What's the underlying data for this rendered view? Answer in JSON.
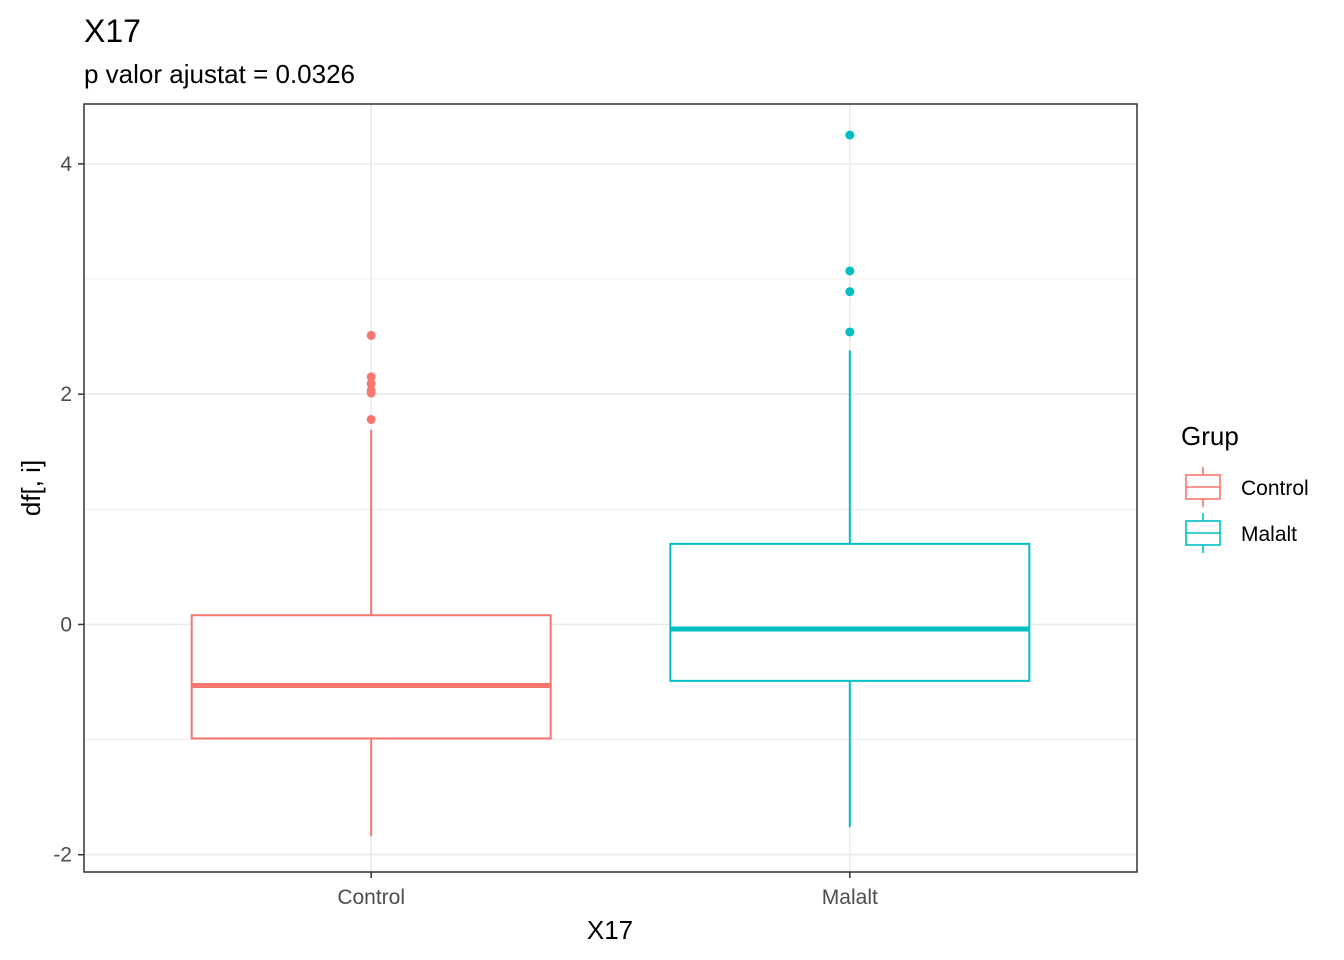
{
  "chart_data": {
    "type": "boxplot",
    "title": "X17",
    "subtitle": "p valor ajustat = 0.0326",
    "xlabel": "X17",
    "ylabel": "df[, i]",
    "categories": [
      "Control",
      "Malalt"
    ],
    "ylim": [
      -2.15,
      4.52
    ],
    "yticks": [
      -2,
      0,
      2,
      4
    ],
    "ytick_labels": [
      "-2",
      "0",
      "2",
      "4"
    ],
    "grid": true,
    "legend": {
      "title": "Grup",
      "position": "right",
      "entries": [
        "Control",
        "Malalt"
      ]
    },
    "boxes": [
      {
        "group": "Control",
        "color": "#F8766D",
        "whisker_low": -1.84,
        "q1": -0.99,
        "median": -0.53,
        "q3": 0.08,
        "whisker_high": 1.69,
        "outliers": [
          2.51,
          2.15,
          2.09,
          2.03,
          2.01,
          1.78
        ]
      },
      {
        "group": "Malalt",
        "color": "#00BFC4",
        "whisker_low": -1.76,
        "q1": -0.49,
        "median": -0.04,
        "q3": 0.7,
        "whisker_high": 2.38,
        "outliers": [
          4.25,
          3.07,
          2.89,
          2.54
        ]
      }
    ]
  }
}
